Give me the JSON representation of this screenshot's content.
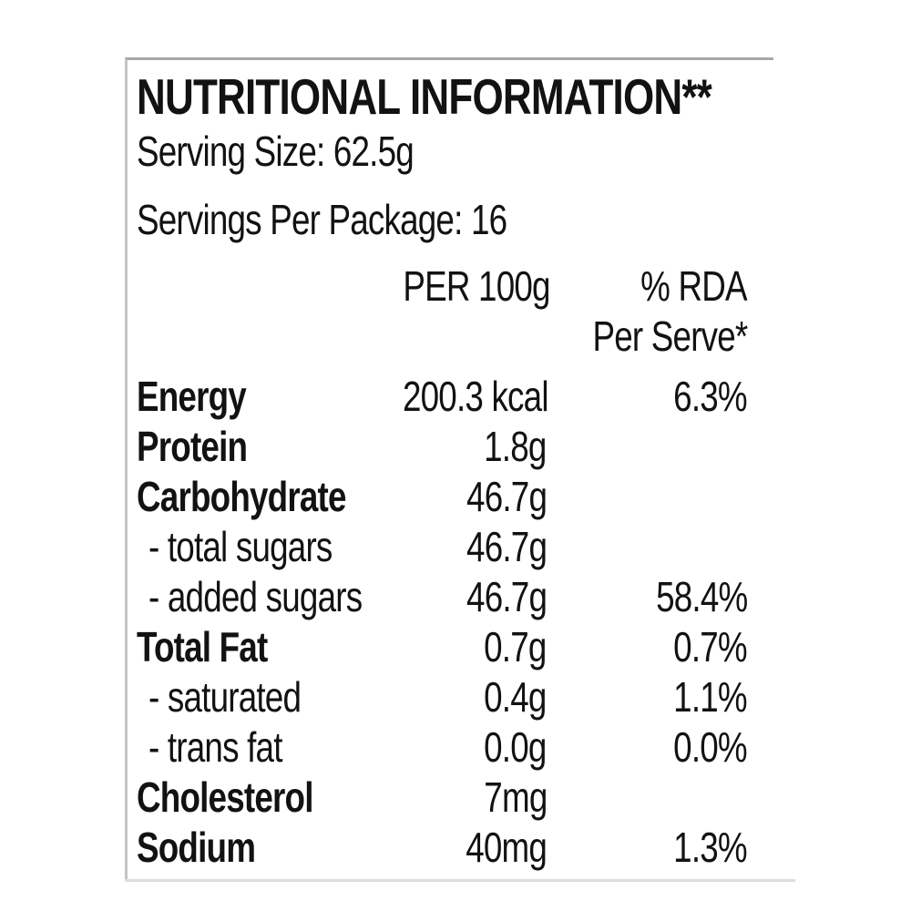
{
  "label": {
    "title": "NUTRITIONAL INFORMATION**",
    "serving_size": "Serving Size: 62.5g",
    "servings_per_package": "Servings Per Package: 16",
    "columns": {
      "amount_header": "PER 100g",
      "rda_header_line1": "% RDA",
      "rda_header_line2": "Per Serve*"
    },
    "rows": [
      {
        "name": "Energy",
        "value": "200.3 kcal",
        "rda": "6.3%"
      },
      {
        "name": "Protein",
        "value": "1.8g",
        "rda": ""
      },
      {
        "name": "Carbohydrate",
        "value": "46.7g",
        "rda": ""
      },
      {
        "name": "- total sugars",
        "value": "46.7g",
        "rda": ""
      },
      {
        "name": "- added sugars",
        "value": "46.7g",
        "rda": "58.4%"
      },
      {
        "name": "Total Fat",
        "value": "0.7g",
        "rda": "0.7%"
      },
      {
        "name": "- saturated",
        "value": "0.4g",
        "rda": "1.1%"
      },
      {
        "name": "- trans fat",
        "value": "0.0g",
        "rda": "0.0%"
      },
      {
        "name": "Cholesterol",
        "value": "7mg",
        "rda": ""
      },
      {
        "name": "Sodium",
        "value": "40mg",
        "rda": "1.3%"
      }
    ]
  },
  "colors": {
    "text": "#121212",
    "frame_top": "#a8a8a8",
    "frame_left": "#c4c4c4",
    "frame_bottom": "#dedede",
    "background": "#ffffff"
  }
}
